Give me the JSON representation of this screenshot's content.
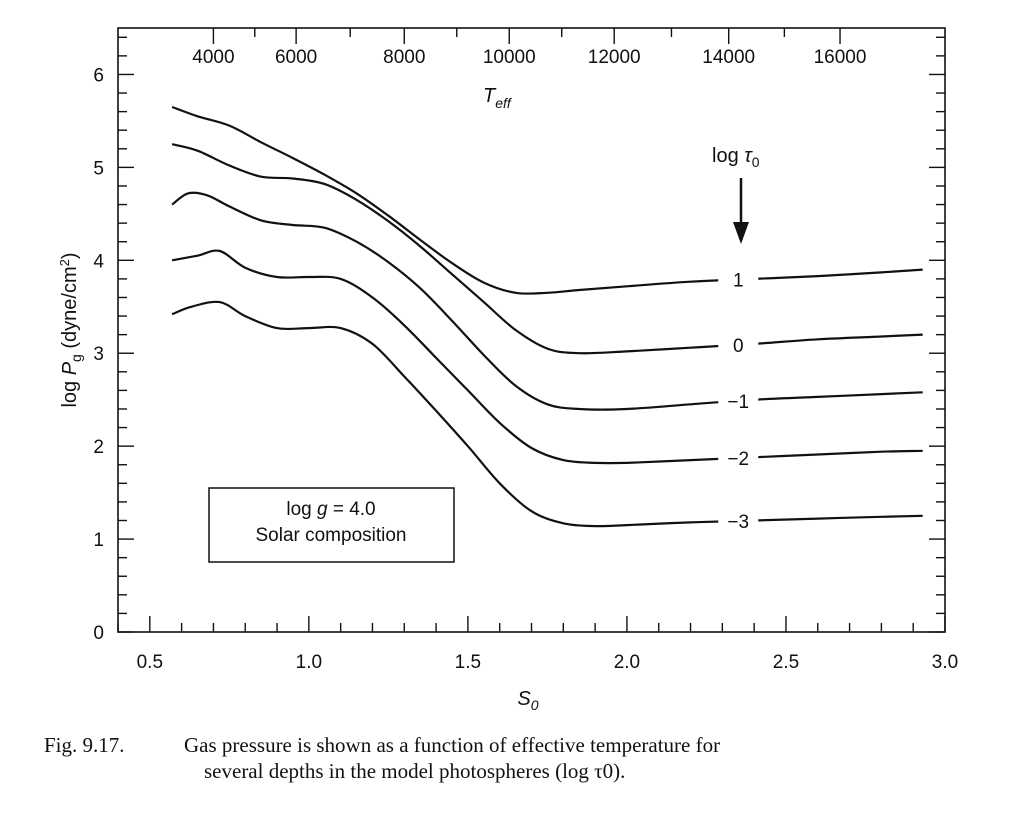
{
  "chart_data": {
    "type": "line",
    "title": "",
    "xlabel": "S_0",
    "ylabel": "log P_g (dyne/cm^2)",
    "top_xlabel": "T_eff",
    "xlim": [
      0.4,
      3.0
    ],
    "ylim": [
      0,
      6.5
    ],
    "x_ticks": [
      "0.5",
      "1.0",
      "1.5",
      "2.0",
      "2.5",
      "3.0"
    ],
    "y_ticks": [
      "0",
      "1",
      "2",
      "3",
      "4",
      "5",
      "6"
    ],
    "top_x_ticks": [
      {
        "label": "4000",
        "s0": 0.7
      },
      {
        "label": "6000",
        "s0": 0.96
      },
      {
        "label": "8000",
        "s0": 1.3
      },
      {
        "label": "10000",
        "s0": 1.63
      },
      {
        "label": "12000",
        "s0": 1.96
      },
      {
        "label": "14000",
        "s0": 2.32
      },
      {
        "label": "16000",
        "s0": 2.67
      }
    ],
    "legend_title": "log τ_0",
    "series": [
      {
        "name": "1",
        "x": [
          0.57,
          0.65,
          0.75,
          0.85,
          0.95,
          1.05,
          1.15,
          1.25,
          1.35,
          1.45,
          1.55,
          1.65,
          1.75,
          1.85,
          2.0,
          2.2,
          2.4,
          2.6,
          2.8,
          2.93
        ],
        "y": [
          5.65,
          5.55,
          5.45,
          5.27,
          5.1,
          4.92,
          4.72,
          4.48,
          4.22,
          3.97,
          3.76,
          3.65,
          3.65,
          3.68,
          3.72,
          3.77,
          3.8,
          3.83,
          3.87,
          3.9
        ]
      },
      {
        "name": "0",
        "x": [
          0.57,
          0.65,
          0.75,
          0.85,
          0.95,
          1.05,
          1.15,
          1.25,
          1.35,
          1.45,
          1.55,
          1.65,
          1.75,
          1.85,
          2.0,
          2.2,
          2.4,
          2.6,
          2.8,
          2.93
        ],
        "y": [
          5.25,
          5.18,
          5.02,
          4.9,
          4.88,
          4.82,
          4.65,
          4.42,
          4.15,
          3.85,
          3.55,
          3.25,
          3.05,
          3.0,
          3.02,
          3.06,
          3.1,
          3.15,
          3.18,
          3.2
        ]
      },
      {
        "name": "−1",
        "x": [
          0.57,
          0.62,
          0.68,
          0.75,
          0.85,
          0.95,
          1.05,
          1.15,
          1.25,
          1.35,
          1.45,
          1.55,
          1.65,
          1.75,
          1.85,
          2.0,
          2.2,
          2.4,
          2.6,
          2.8,
          2.93
        ],
        "y": [
          4.6,
          4.72,
          4.7,
          4.58,
          4.43,
          4.38,
          4.35,
          4.2,
          3.98,
          3.7,
          3.35,
          2.98,
          2.65,
          2.45,
          2.4,
          2.4,
          2.45,
          2.5,
          2.53,
          2.56,
          2.58
        ]
      },
      {
        "name": "−2",
        "x": [
          0.57,
          0.65,
          0.72,
          0.8,
          0.9,
          1.0,
          1.1,
          1.2,
          1.3,
          1.4,
          1.5,
          1.6,
          1.7,
          1.8,
          1.9,
          2.0,
          2.2,
          2.4,
          2.6,
          2.8,
          2.93
        ],
        "y": [
          4.0,
          4.05,
          4.1,
          3.92,
          3.82,
          3.82,
          3.8,
          3.6,
          3.3,
          2.95,
          2.6,
          2.25,
          1.98,
          1.85,
          1.82,
          1.82,
          1.85,
          1.88,
          1.91,
          1.94,
          1.95
        ]
      },
      {
        "name": "−3",
        "x": [
          0.57,
          0.63,
          0.72,
          0.8,
          0.9,
          1.0,
          1.1,
          1.2,
          1.3,
          1.4,
          1.5,
          1.6,
          1.7,
          1.8,
          1.9,
          2.0,
          2.2,
          2.4,
          2.6,
          2.8,
          2.93
        ],
        "y": [
          3.42,
          3.5,
          3.55,
          3.4,
          3.27,
          3.27,
          3.27,
          3.1,
          2.75,
          2.38,
          2.0,
          1.6,
          1.3,
          1.17,
          1.14,
          1.15,
          1.18,
          1.2,
          1.22,
          1.24,
          1.25
        ]
      }
    ],
    "label_x": 2.35,
    "annotation_box": {
      "line1": "log g = 4.0",
      "line2": "Solar composition"
    }
  },
  "caption": {
    "number": "Fig. 9.17.",
    "line1": "Gas pressure is shown as a function of effective temperature for",
    "line2": "several depths in the model photospheres (log τ0)."
  }
}
